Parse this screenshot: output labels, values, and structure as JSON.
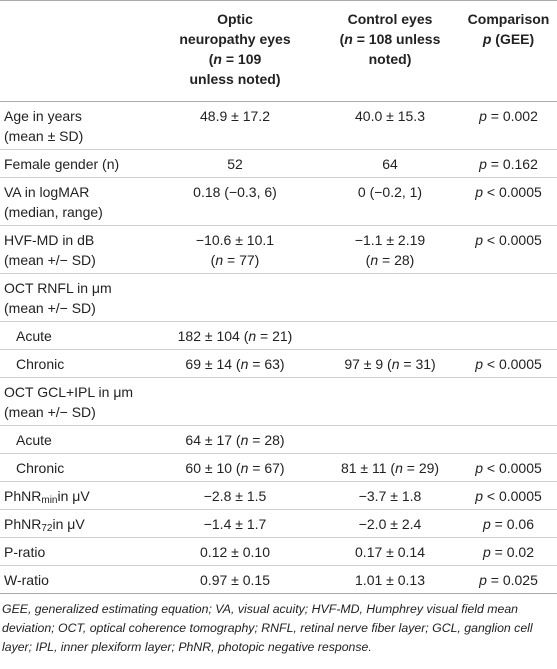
{
  "header": {
    "columns": [
      [
        "Optic",
        "neuropathy eyes",
        "(n = 109",
        "unless noted)"
      ],
      [
        "Control eyes",
        "(n = 108 unless",
        "noted)"
      ],
      [
        "Comparison",
        "p (GEE)"
      ]
    ]
  },
  "rows": [
    {
      "label": [
        "Age in years",
        "(mean ± SD)"
      ],
      "optic": "48.9 ± 17.2",
      "control": "40.0 ± 15.3",
      "comparison": "p = 0.002"
    },
    {
      "label": "Female gender (n)",
      "optic": "52",
      "control": "64",
      "comparison": "p = 0.162"
    },
    {
      "label": [
        "VA in logMAR",
        "(median, range)"
      ],
      "optic": "0.18 (−0.3, 6)",
      "control": "0 (−0.2, 1)",
      "comparison": "p < 0.0005"
    },
    {
      "label": [
        "HVF-MD in dB",
        "(mean +/− SD)"
      ],
      "optic": [
        "−10.6 ± 10.1",
        "(n = 77)"
      ],
      "control": [
        "−1.1 ± 2.19",
        "(n = 28)"
      ],
      "comparison": "p < 0.0005"
    },
    {
      "label": [
        "OCT RNFL in μm",
        "(mean +/− SD)"
      ],
      "rows": [
        {
          "label": "Acute",
          "optic": "182 ± 104 (n = 21)"
        },
        {
          "label": "Chronic",
          "optic": "69 ± 14 (n = 63)",
          "control": "97 ± 9 (n = 31)",
          "comparison": "p < 0.0005"
        }
      ]
    },
    {
      "label": [
        "OCT GCL+IPL in μm",
        "(mean +/− SD)"
      ],
      "rows": [
        {
          "label": "Acute",
          "optic": "64 ± 17 (n = 28)"
        },
        {
          "label": "Chronic",
          "optic": "60 ± 10 (n = 67)",
          "control": "81 ± 11 (n = 29)",
          "comparison": "p < 0.0005"
        }
      ]
    },
    {
      "label": {
        "base": "PhNR",
        "sub": "min",
        "rest": "in μV"
      },
      "optic": "−2.8 ± 1.5",
      "control": "−3.7 ± 1.8",
      "comparison": "p < 0.0005"
    },
    {
      "label": {
        "base": "PhNR",
        "sub": "72",
        "rest": "in μV"
      },
      "optic": "−1.4 ± 1.7",
      "control": "−2.0 ± 2.4",
      "comparison": "p = 0.06"
    },
    {
      "label": "P-ratio",
      "optic": "0.12 ± 0.10",
      "control": "0.17 ± 0.14",
      "comparison": "p = 0.02"
    },
    {
      "label": "W-ratio",
      "optic": "0.97 ± 0.15",
      "control": "1.01 ± 0.13",
      "comparison": "p = 0.025"
    }
  ],
  "footnote": "GEE, generalized estimating equation; VA, visual acuity; HVF-MD, Humphrey visual field mean deviation; OCT, optical coherence tomography; RNFL, retinal nerve fiber layer; GCL, ganglion cell layer; IPL, inner plexiform layer; PhNR, photopic negative response."
}
